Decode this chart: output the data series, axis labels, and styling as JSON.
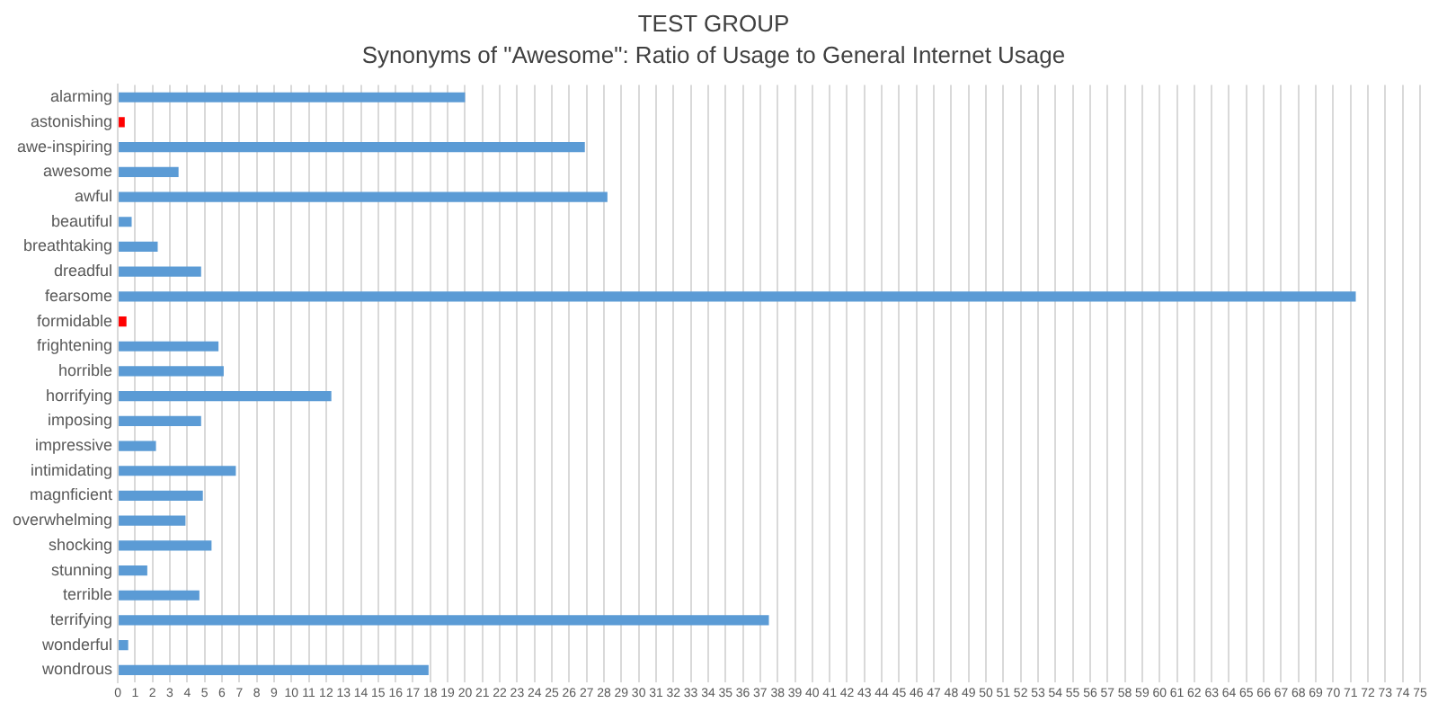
{
  "chart_data": {
    "type": "bar",
    "orientation": "horizontal",
    "title": "TEST GROUP",
    "subtitle": "Synonyms of \"Awesome\": Ratio of Usage to General Internet Usage",
    "categories": [
      "alarming",
      "astonishing",
      "awe-inspiring",
      "awesome",
      "awful",
      "beautiful",
      "breathtaking",
      "dreadful",
      "fearsome",
      "formidable",
      "frightening",
      "horrible",
      "horrifying",
      "imposing",
      "impressive",
      "intimidating",
      "magnficient",
      "overwhelming",
      "shocking",
      "stunning",
      "terrible",
      "terrifying",
      "wonderful",
      "wondrous"
    ],
    "values": [
      20.0,
      0.4,
      26.9,
      3.5,
      28.2,
      0.8,
      2.3,
      4.8,
      71.3,
      0.5,
      5.8,
      6.1,
      12.3,
      4.8,
      2.2,
      6.8,
      4.9,
      3.9,
      5.4,
      1.7,
      4.7,
      37.5,
      0.6,
      17.9
    ],
    "colors": [
      "#5b9bd5",
      "#ff0000",
      "#5b9bd5",
      "#5b9bd5",
      "#5b9bd5",
      "#5b9bd5",
      "#5b9bd5",
      "#5b9bd5",
      "#5b9bd5",
      "#ff0000",
      "#5b9bd5",
      "#5b9bd5",
      "#5b9bd5",
      "#5b9bd5",
      "#5b9bd5",
      "#5b9bd5",
      "#5b9bd5",
      "#5b9bd5",
      "#5b9bd5",
      "#5b9bd5",
      "#5b9bd5",
      "#5b9bd5",
      "#5b9bd5",
      "#5b9bd5"
    ],
    "xlim": [
      0,
      75
    ],
    "xticks": [
      0,
      1,
      2,
      3,
      4,
      5,
      6,
      7,
      8,
      9,
      10,
      11,
      12,
      13,
      14,
      15,
      16,
      17,
      18,
      19,
      20,
      21,
      22,
      23,
      24,
      25,
      26,
      27,
      28,
      29,
      30,
      31,
      32,
      33,
      34,
      35,
      36,
      37,
      38,
      39,
      40,
      41,
      42,
      43,
      44,
      45,
      46,
      47,
      48,
      49,
      50,
      51,
      52,
      53,
      54,
      55,
      56,
      57,
      58,
      59,
      60,
      61,
      62,
      63,
      64,
      65,
      66,
      67,
      68,
      69,
      70,
      71,
      72,
      73,
      74,
      75
    ],
    "grid": "x",
    "legend": false
  }
}
